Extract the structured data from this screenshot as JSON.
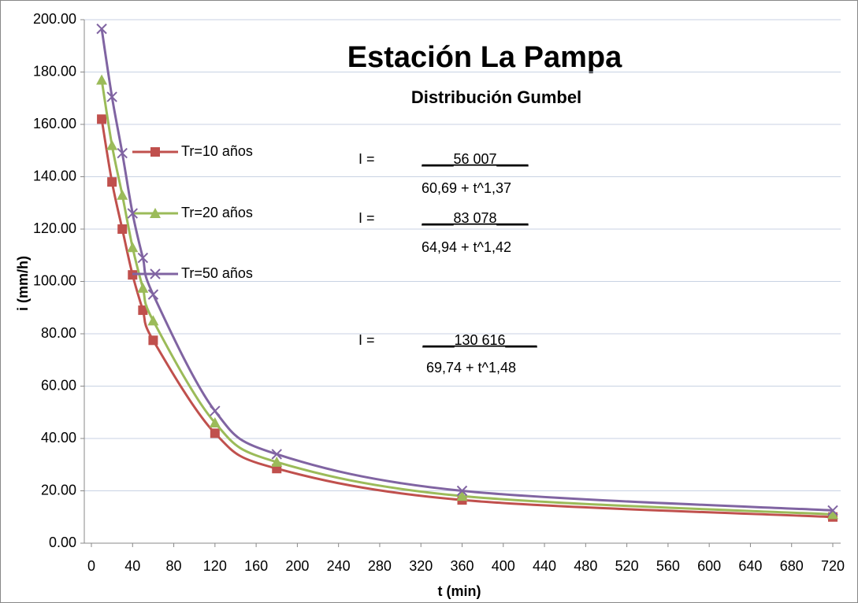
{
  "chart_data": {
    "type": "line",
    "title": "Estación La Pampa",
    "subtitle": "Distribución Gumbel",
    "x_label": "t (min)",
    "y_label": "i (mm/h)",
    "x": [
      10,
      20,
      30,
      40,
      50,
      60,
      120,
      180,
      360,
      720
    ],
    "series": [
      {
        "name": "Tr=10 años",
        "color": "#c0504d",
        "marker": "square",
        "values": [
          162,
          138,
          120,
          102.5,
          89,
          77.5,
          42,
          28.5,
          16.5,
          10
        ]
      },
      {
        "name": "Tr=20 años",
        "color": "#9bbb59",
        "marker": "triangle",
        "values": [
          177,
          152,
          133,
          113,
          97.5,
          85,
          46,
          31,
          18,
          11
        ]
      },
      {
        "name": "Tr=50 años",
        "color": "#8064a2",
        "marker": "x",
        "values": [
          196.5,
          170.5,
          149,
          126,
          109,
          95,
          50.5,
          34,
          20,
          12.5
        ]
      }
    ],
    "xlim": [
      0,
      720
    ],
    "xticks": [
      0,
      40,
      80,
      120,
      160,
      200,
      240,
      280,
      320,
      360,
      400,
      440,
      480,
      520,
      560,
      600,
      640,
      680,
      720
    ],
    "ylim": [
      0,
      200
    ],
    "yticks": [
      {
        "value": 0,
        "label": "0.00"
      },
      {
        "value": 20,
        "label": "20.00"
      },
      {
        "value": 40,
        "label": "40.00"
      },
      {
        "value": 60,
        "label": "60.00"
      },
      {
        "value": 80,
        "label": "80.00"
      },
      {
        "value": 100,
        "label": "100.00"
      },
      {
        "value": 120,
        "label": "120.00"
      },
      {
        "value": 140,
        "label": "140.00"
      },
      {
        "value": 160,
        "label": "160.00"
      },
      {
        "value": 180,
        "label": "180.00"
      },
      {
        "value": 200,
        "label": "200.00"
      }
    ],
    "grid": true,
    "annotations": [
      {
        "lhs": "I =",
        "numerator": "____56 007____",
        "denominator": "60,69 + t^1,37"
      },
      {
        "lhs": "I =",
        "numerator": "____83 078____",
        "denominator": "64,94 + t^1,42"
      },
      {
        "lhs": "I =",
        "numerator": "____130 616____",
        "denominator": "69,74 + t^1,48"
      }
    ]
  }
}
